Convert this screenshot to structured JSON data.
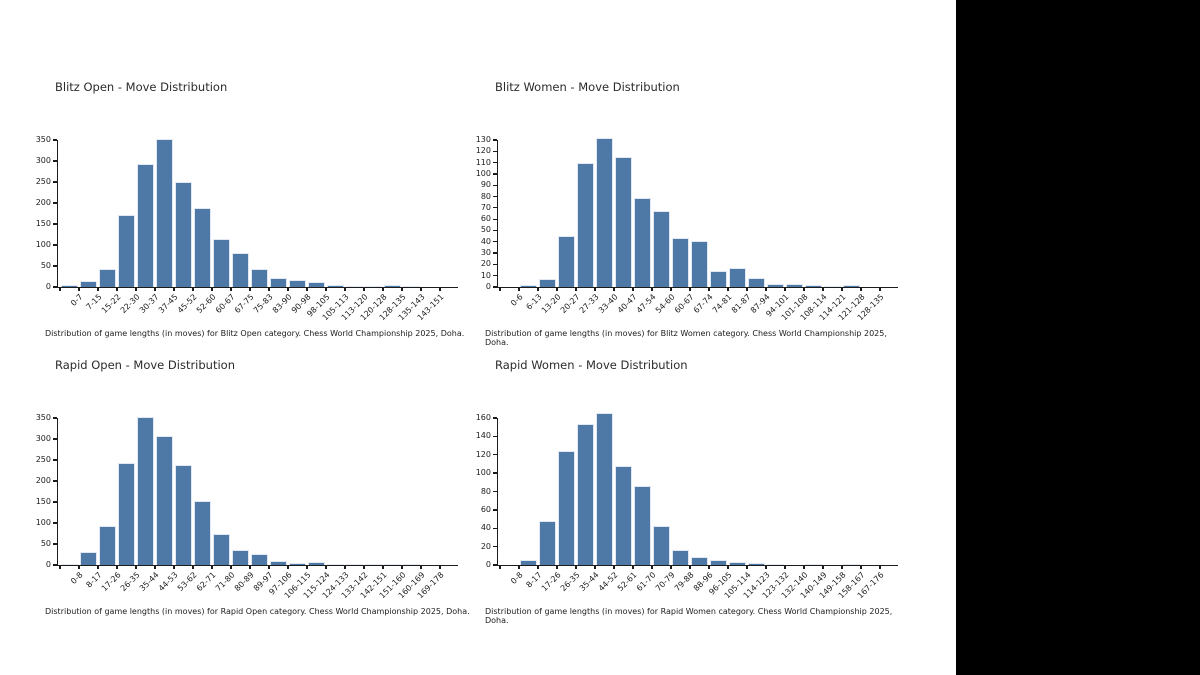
{
  "style": {
    "bar_color": "#4e79a7",
    "bar_edge_color": "#e9eef5",
    "axis_color": "#1c1c1c",
    "background_color": "#ffffff",
    "right_panel_color": "#000000"
  },
  "chart_data": [
    {
      "type": "bar",
      "title": "Blitz Open - Move Distribution",
      "caption": "Distribution of game lengths (in moves) for Blitz Open category. Chess World Championship 2025, Doha.",
      "categories": [
        "0-7",
        "7-15",
        "15-22",
        "22-30",
        "30-37",
        "37-45",
        "45-52",
        "52-60",
        "60-67",
        "67-75",
        "75-83",
        "83-90",
        "90-98",
        "98-105",
        "105-113",
        "113-120",
        "120-128",
        "128-135",
        "135-143",
        "143-151"
      ],
      "values": [
        4,
        14,
        42,
        172,
        294,
        352,
        249,
        189,
        114,
        80,
        42,
        22,
        17,
        12,
        5,
        2,
        2,
        4,
        3,
        0
      ],
      "xlabel": "",
      "ylabel": "",
      "ylim": [
        0,
        350
      ],
      "ytick_step": 50,
      "grid": false,
      "legend": null
    },
    {
      "type": "bar",
      "title": "Blitz Women - Move Distribution",
      "caption": "Distribution of game lengths (in moves) for Blitz Women category. Chess World Championship 2025, Doha.",
      "categories": [
        "0-6",
        "6-13",
        "13-20",
        "20-27",
        "27-33",
        "33-40",
        "40-47",
        "47-54",
        "54-60",
        "60-67",
        "67-74",
        "74-81",
        "81-87",
        "87-94",
        "94-101",
        "101-108",
        "108-114",
        "114-121",
        "121-128",
        "128-135"
      ],
      "values": [
        0,
        2,
        7,
        45,
        110,
        132,
        115,
        79,
        67,
        43,
        41,
        14,
        17,
        8,
        3,
        3,
        2,
        1,
        2,
        0
      ],
      "xlabel": "",
      "ylabel": "",
      "ylim": [
        0,
        130
      ],
      "ytick_step": 10,
      "grid": false,
      "legend": null
    },
    {
      "type": "bar",
      "title": "Rapid Open - Move Distribution",
      "caption": "Distribution of game lengths (in moves) for Rapid Open category. Chess World Championship 2025, Doha.",
      "categories": [
        "0-8",
        "8-17",
        "17-26",
        "26-35",
        "35-44",
        "44-53",
        "53-62",
        "62-71",
        "71-80",
        "80-89",
        "89-97",
        "97-106",
        "106-115",
        "115-124",
        "124-133",
        "133-142",
        "142-151",
        "151-160",
        "160-169",
        "169-178"
      ],
      "values": [
        3,
        30,
        92,
        243,
        352,
        308,
        238,
        153,
        74,
        36,
        26,
        9,
        4,
        6,
        3,
        3,
        1,
        1,
        1,
        0
      ],
      "xlabel": "",
      "ylabel": "",
      "ylim": [
        0,
        350
      ],
      "ytick_step": 50,
      "grid": false,
      "legend": null
    },
    {
      "type": "bar",
      "title": "Rapid Women - Move Distribution",
      "caption": "Distribution of game lengths (in moves) for Rapid Women category. Chess World Championship 2025, Doha.",
      "categories": [
        "0-8",
        "8-17",
        "17-26",
        "26-35",
        "35-44",
        "44-52",
        "52-61",
        "61-70",
        "70-79",
        "79-88",
        "88-96",
        "96-105",
        "105-114",
        "114-123",
        "123-132",
        "132-140",
        "140-149",
        "149-158",
        "158-167",
        "167-176"
      ],
      "values": [
        0,
        5,
        48,
        124,
        154,
        165,
        108,
        86,
        42,
        16,
        9,
        6,
        3,
        2,
        1,
        0,
        1,
        0,
        1,
        0
      ],
      "xlabel": "",
      "ylabel": "",
      "ylim": [
        0,
        160
      ],
      "ytick_step": 20,
      "grid": false,
      "legend": null
    }
  ]
}
